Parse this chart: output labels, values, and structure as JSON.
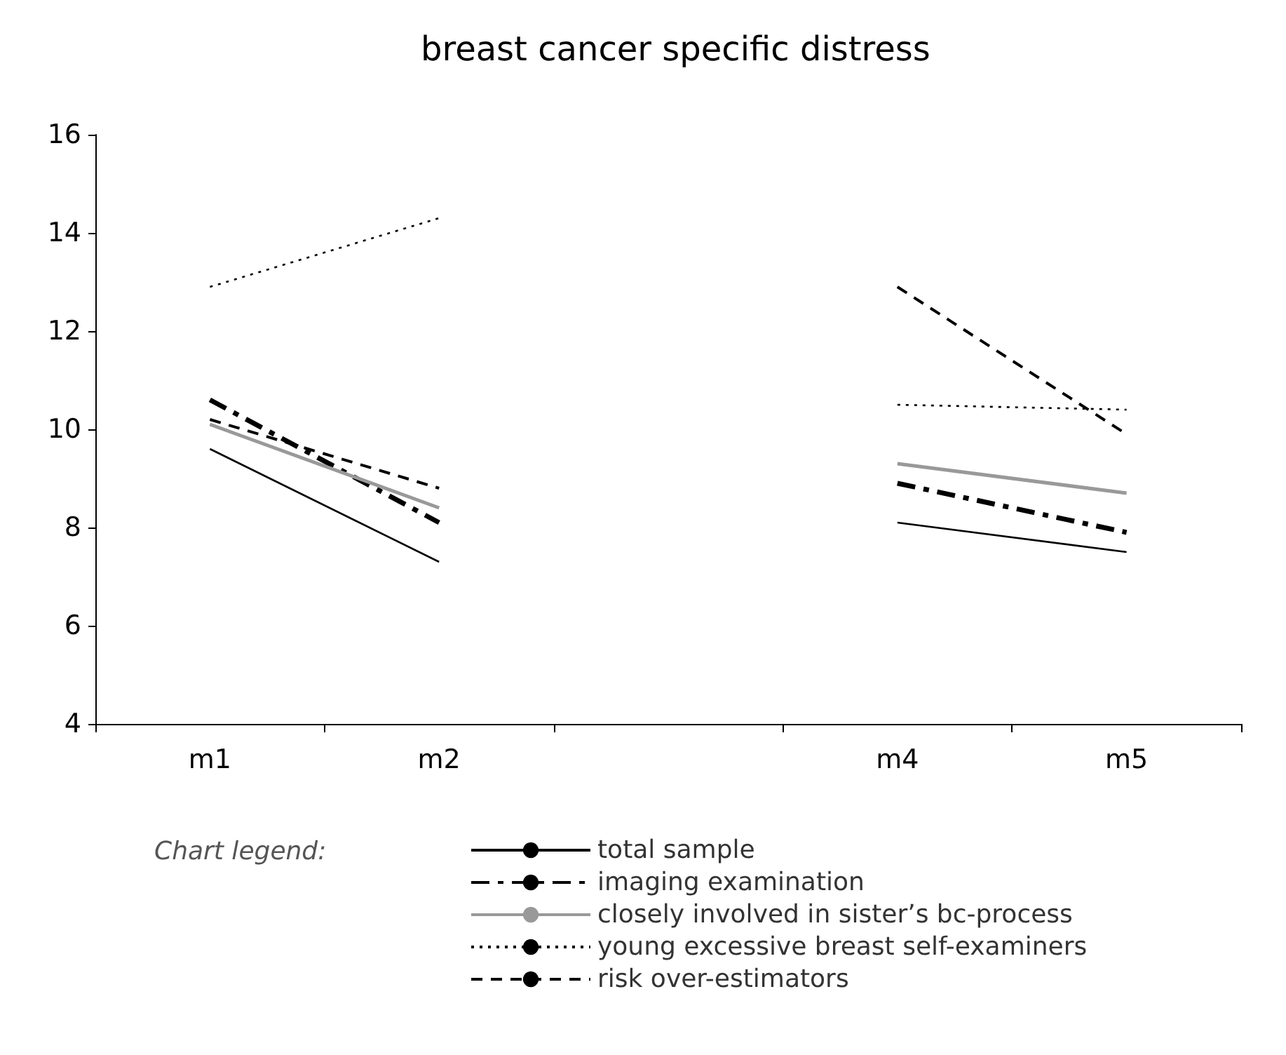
{
  "chart_data": {
    "type": "line",
    "title": "breast cancer specific distress",
    "legend_title": "Chart legend:",
    "categories": [
      "m1",
      "m2",
      null,
      "m4",
      "m5"
    ],
    "series": [
      {
        "name": "total sample",
        "color": "#000000",
        "line_style": "solid",
        "values": [
          9.6,
          7.3,
          null,
          8.1,
          7.5
        ]
      },
      {
        "name": "imaging examination",
        "color": "#000000",
        "line_style": "dashdot",
        "values": [
          10.6,
          8.1,
          null,
          8.9,
          7.9
        ]
      },
      {
        "name": "closely involved in sister’s bc-process",
        "color": "#999999",
        "line_style": "solid",
        "values": [
          10.1,
          8.4,
          null,
          9.3,
          8.7
        ]
      },
      {
        "name": "young excessive breast self-examiners",
        "color": "#000000",
        "line_style": "dotted",
        "values": [
          12.9,
          14.3,
          null,
          10.5,
          10.4
        ]
      },
      {
        "name": "risk over-estimators",
        "color": "#000000",
        "line_style": "dashed",
        "values": [
          10.2,
          8.8,
          null,
          12.9,
          9.9
        ]
      }
    ],
    "ylim": [
      4,
      16
    ],
    "yticks": [
      4,
      6,
      8,
      10,
      12,
      14,
      16
    ],
    "grid": false,
    "legend": "bottom",
    "marker": "none"
  }
}
